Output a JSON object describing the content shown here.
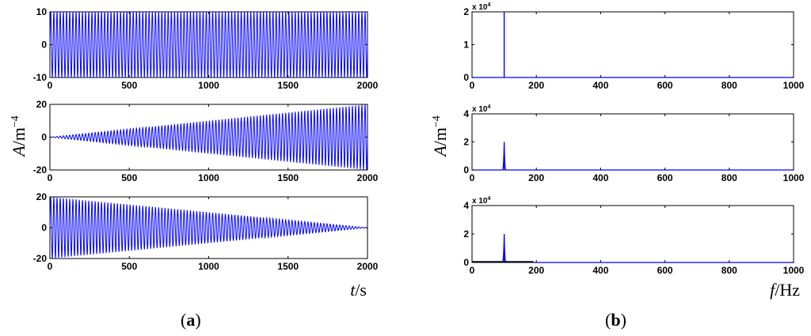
{
  "figure": {
    "ylabel_left": "A/m",
    "ylabel_left_exp": "−4",
    "ylabel_right": "A/m",
    "ylabel_right_exp": "−4",
    "xlabel_left": "t/s",
    "xlabel_right": "f/Hz",
    "caption_a": "a",
    "caption_b": "b",
    "line_color": "#0000ff",
    "black_color": "#000000"
  },
  "chart_data": [
    {
      "type": "line",
      "panel": "a1",
      "signal": "constant-amplitude sinusoid",
      "amplitude_start": 10,
      "amplitude_end": 10,
      "cycles": 100,
      "xlim": [
        0,
        2000
      ],
      "ylim": [
        -10,
        10
      ],
      "xticks": [
        "0",
        "500",
        "1000",
        "1500",
        "2000"
      ],
      "yticks": [
        "-10",
        "0",
        "10"
      ],
      "xlabel": "",
      "ylabel": ""
    },
    {
      "type": "line",
      "panel": "a2",
      "signal": "linearly growing sinusoid",
      "amplitude_start": 0,
      "amplitude_end": 20,
      "cycles": 100,
      "xlim": [
        0,
        2000
      ],
      "ylim": [
        -20,
        20
      ],
      "xticks": [
        "0",
        "500",
        "1000",
        "1500",
        "2000"
      ],
      "yticks": [
        "-20",
        "0",
        "20"
      ],
      "xlabel": "",
      "ylabel": ""
    },
    {
      "type": "line",
      "panel": "a3",
      "signal": "linearly decaying sinusoid",
      "amplitude_start": 20,
      "amplitude_end": 0,
      "cycles": 100,
      "xlim": [
        0,
        2000
      ],
      "ylim": [
        -20,
        20
      ],
      "xticks": [
        "0",
        "500",
        "1000",
        "1500",
        "2000"
      ],
      "yticks": [
        "-20",
        "0",
        "20"
      ],
      "xlabel": "",
      "ylabel": ""
    },
    {
      "type": "line",
      "panel": "b1",
      "peak_x": 100,
      "peak_y": 2,
      "peak_width": 0,
      "floor": 0,
      "scale_label": "x 10",
      "scale_exp": "4",
      "xlim": [
        0,
        1000
      ],
      "ylim": [
        0,
        2
      ],
      "xticks": [
        "0",
        "200",
        "400",
        "600",
        "800",
        "1000"
      ],
      "yticks": [
        "0",
        "1",
        "2"
      ],
      "xlabel": "",
      "ylabel": ""
    },
    {
      "type": "line",
      "panel": "b2",
      "peak_x": 100,
      "peak_y": 2,
      "peak_width": 6,
      "floor": 0,
      "scale_label": "x 10",
      "scale_exp": "4",
      "xlim": [
        0,
        1000
      ],
      "ylim": [
        0,
        4
      ],
      "xticks": [
        "0",
        "200",
        "400",
        "600",
        "800",
        "1000"
      ],
      "yticks": [
        "0",
        "2",
        "4"
      ],
      "xlabel": "",
      "ylabel": ""
    },
    {
      "type": "line",
      "panel": "b3",
      "peak_x": 100,
      "peak_y": 2,
      "peak_width": 6,
      "floor": 0.05,
      "floor_end": 190,
      "scale_label": "x 10",
      "scale_exp": "4",
      "xlim": [
        0,
        1000
      ],
      "ylim": [
        0,
        4
      ],
      "xticks": [
        "0",
        "200",
        "400",
        "600",
        "800",
        "1000"
      ],
      "yticks": [
        "0",
        "2",
        "4"
      ],
      "xlabel": "",
      "ylabel": ""
    }
  ]
}
